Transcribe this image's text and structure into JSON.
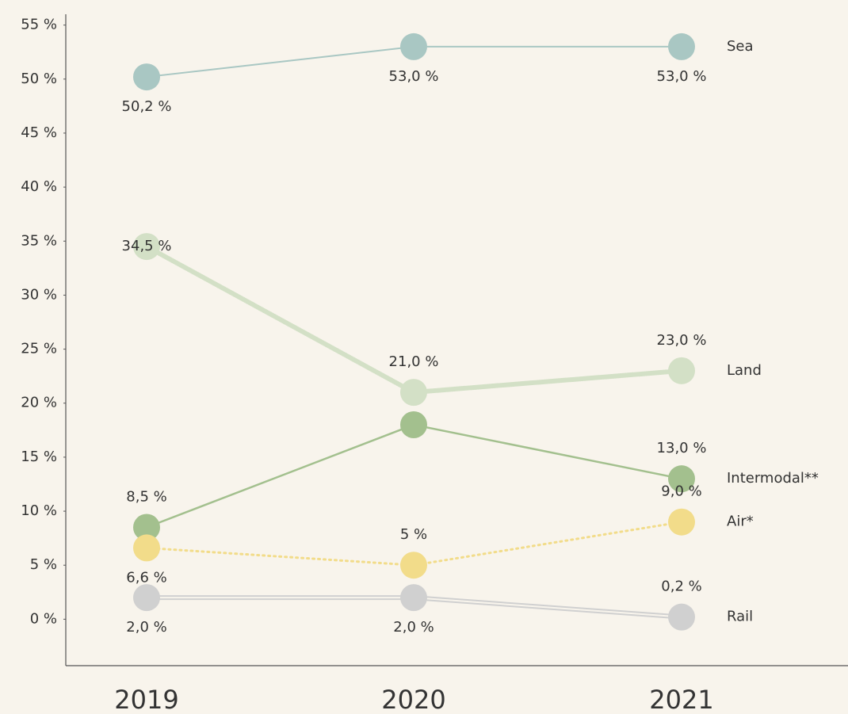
{
  "chart_data": {
    "type": "line",
    "categories": [
      "2019",
      "2020",
      "2021"
    ],
    "series": [
      {
        "name": "Sea",
        "color": "#a9c7c3",
        "values": [
          50.2,
          53.0,
          53.0
        ],
        "value_labels": [
          "50,2 %",
          "53,0 %",
          "53,0 %"
        ]
      },
      {
        "name": "Land",
        "color": "#d3e0c6",
        "values": [
          34.5,
          21.0,
          23.0
        ],
        "value_labels": [
          "34,5 %",
          "21,0 %",
          "23,0 %"
        ]
      },
      {
        "name": "Intermodal**",
        "color": "#a3c08e",
        "values": [
          8.5,
          18,
          13.0
        ],
        "value_labels": [
          "8,5 %",
          null,
          "13,0 %"
        ]
      },
      {
        "name": "Air*",
        "color": "#f2dc8a",
        "values": [
          6.6,
          5,
          9.0
        ],
        "value_labels": [
          "6,6 %",
          "5 %",
          "9,0 %"
        ]
      },
      {
        "name": "Rail",
        "color": "#d0d0d0",
        "values": [
          2.0,
          2.0,
          0.2
        ],
        "value_labels": [
          "2,0 %",
          "2,0 %",
          "0,2 %"
        ]
      }
    ],
    "ylim": [
      -4.3,
      56
    ],
    "yticks": [
      {
        "value": 0,
        "label": "0 %"
      },
      {
        "value": 5,
        "label": "5 %"
      },
      {
        "value": 10,
        "label": "10 %"
      },
      {
        "value": 15,
        "label": "15 %"
      },
      {
        "value": 20,
        "label": "20 %"
      },
      {
        "value": 25,
        "label": "25 %"
      },
      {
        "value": 30,
        "label": "30 %"
      },
      {
        "value": 35,
        "label": "35 %"
      },
      {
        "value": 40,
        "label": "40 %"
      },
      {
        "value": 45,
        "label": "45 %"
      },
      {
        "value": 50,
        "label": "50 %"
      },
      {
        "value": 55,
        "label": "55 %"
      }
    ],
    "grid": false
  }
}
